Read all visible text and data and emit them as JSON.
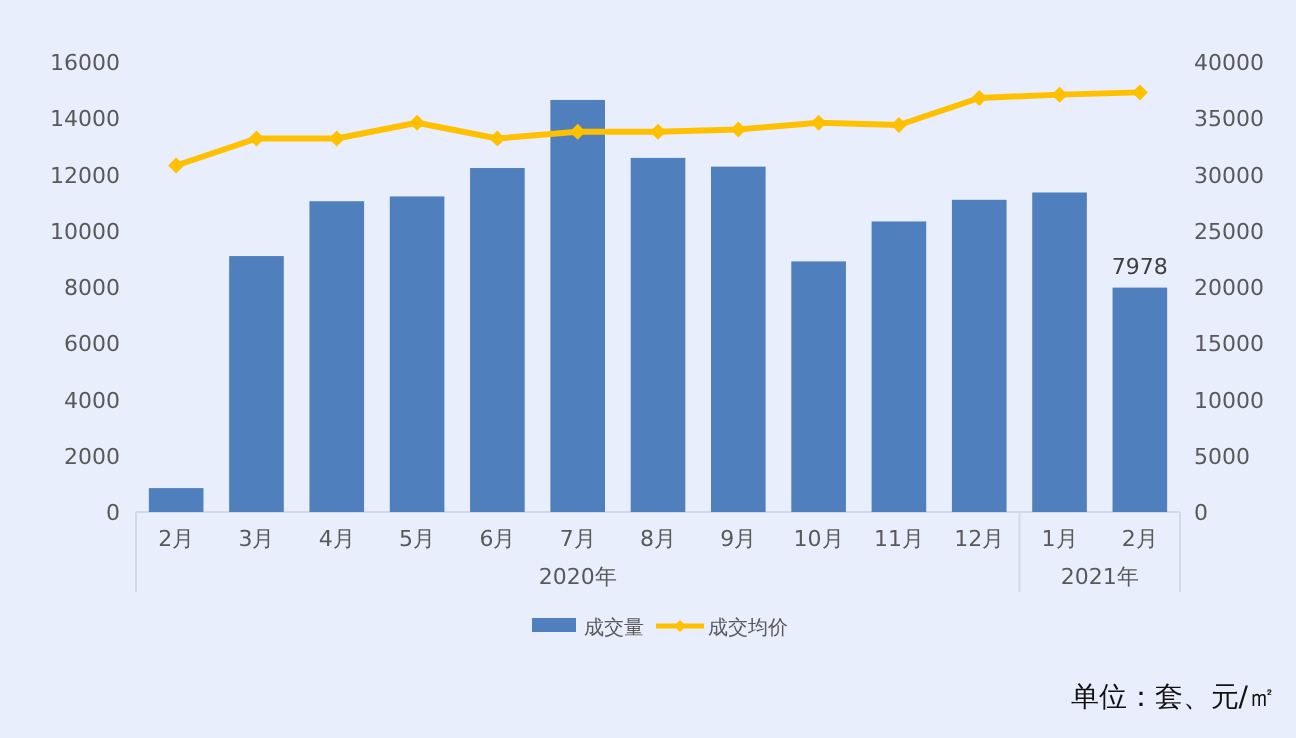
{
  "chart_data": {
    "type": "bar",
    "categories": [
      "2月",
      "3月",
      "4月",
      "5月",
      "6月",
      "7月",
      "8月",
      "9月",
      "10月",
      "11月",
      "12月",
      "1月",
      "2月"
    ],
    "series": [
      {
        "name": "成交量",
        "color": "#4f7fbc",
        "values": [
          850,
          9100,
          11050,
          11220,
          12230,
          14650,
          12590,
          12280,
          8910,
          10330,
          11100,
          11360,
          7978
        ],
        "value_labels": [
          null,
          null,
          null,
          null,
          null,
          null,
          null,
          null,
          null,
          null,
          null,
          null,
          "7978"
        ]
      },
      {
        "name": "成交均价",
        "type": "line",
        "axis": "y2",
        "color": "#ffc000",
        "marker": "diamond",
        "values": [
          30800,
          33200,
          33200,
          34600,
          33200,
          33800,
          33800,
          34000,
          34600,
          34400,
          36800,
          37100,
          37300
        ]
      }
    ],
    "ylim": [
      0,
      16000
    ],
    "yticks": [
      0,
      2000,
      4000,
      6000,
      8000,
      10000,
      12000,
      14000,
      16000
    ],
    "y2lim": [
      0,
      40000
    ],
    "y2ticks": [
      0,
      5000,
      10000,
      15000,
      20000,
      25000,
      30000,
      35000,
      40000
    ],
    "legend": "bottom",
    "grid": false,
    "annotations": [
      "2020年",
      "2021年",
      "单位：套、元/㎡"
    ]
  }
}
